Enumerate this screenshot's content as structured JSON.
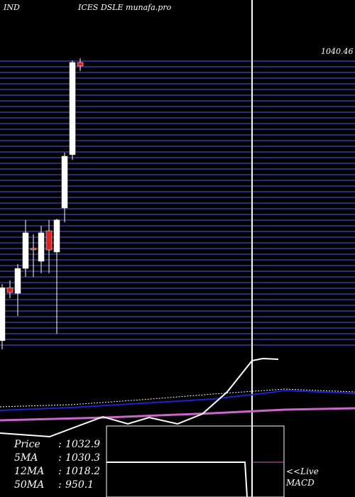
{
  "chart_data": {
    "type": "candlestick",
    "title_left": "IND",
    "title": "ICES DSLE munafa.pro",
    "last_price_label": "1040.46",
    "ylim": [
      930,
      1045
    ],
    "candles": [
      {
        "open": 934.2,
        "high": 956.3,
        "low": 930.8,
        "close": 954.9,
        "color": "#ffffff"
      },
      {
        "open": 954.9,
        "high": 957.7,
        "low": 950.8,
        "close": 953.0,
        "color": "#dd2222"
      },
      {
        "open": 952.7,
        "high": 964.1,
        "low": 943.9,
        "close": 962.4,
        "color": "#ffffff"
      },
      {
        "open": 962.4,
        "high": 981.3,
        "low": 959.1,
        "close": 976.3,
        "color": "#ffffff"
      },
      {
        "open": 969.9,
        "high": 975.7,
        "low": 959.1,
        "close": 970.2,
        "color": "#dd2222"
      },
      {
        "open": 965.2,
        "high": 979.0,
        "low": 960.5,
        "close": 976.3,
        "color": "#ffffff"
      },
      {
        "open": 977.1,
        "high": 981.3,
        "low": 960.5,
        "close": 969.6,
        "color": "#dd2222"
      },
      {
        "open": 968.8,
        "high": 981.8,
        "low": 936.9,
        "close": 981.3,
        "color": "#ffffff"
      },
      {
        "open": 986.0,
        "high": 1007.6,
        "low": 980.4,
        "close": 1006.2,
        "color": "#ffffff"
      },
      {
        "open": 1006.8,
        "high": 1043.6,
        "low": 1004.8,
        "close": 1042.8,
        "color": "#ffffff"
      },
      {
        "open": 1042.8,
        "high": 1044.4,
        "low": 1039.5,
        "close": 1041.4,
        "color": "#dd2222"
      }
    ],
    "stats": [
      {
        "label": "Price",
        "value": "1032.9"
      },
      {
        "label": "5MA",
        "value": "1030.3"
      },
      {
        "label": "12MA",
        "value": "1018.2"
      },
      {
        "label": "50MA",
        "value": "950.1"
      }
    ],
    "live_label": "<<Live",
    "macd_label": "MACD"
  }
}
